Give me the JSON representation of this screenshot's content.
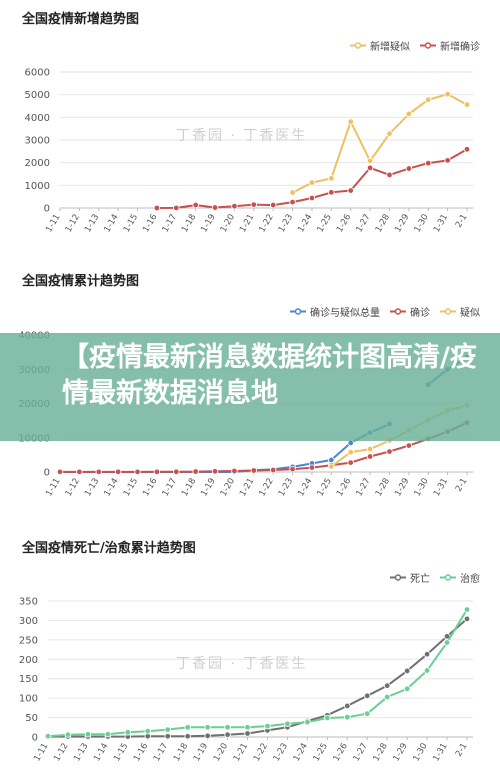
{
  "banner": {
    "text": "【疫情最新消息数据统计图高清/疫情最新数据消息地"
  },
  "watermark": {
    "text": "丁香园 · 丁香医生"
  },
  "colors": {
    "yellow": "#f0c060",
    "red": "#c8504f",
    "blue": "#4b84d8",
    "gray": "#707070",
    "green": "#69cf95"
  },
  "chart_data": [
    {
      "type": "line",
      "title": "全国疫情新增趋势图",
      "categories": [
        "1-11",
        "1-12",
        "1-13",
        "1-14",
        "1-15",
        "1-16",
        "1-17",
        "1-18",
        "1-19",
        "1-20",
        "1-21",
        "1-22",
        "1-23",
        "1-24",
        "1-25",
        "1-26",
        "1-27",
        "1-28",
        "1-29",
        "1-30",
        "1-31",
        "2-1"
      ],
      "ylim": [
        0,
        6000
      ],
      "yticks": [
        0,
        1000,
        2000,
        3000,
        4000,
        5000,
        6000
      ],
      "legend_position": "top-right",
      "series": [
        {
          "name": "新增疑似",
          "color": "#f0c060",
          "values": [
            null,
            null,
            null,
            null,
            null,
            null,
            null,
            null,
            null,
            null,
            null,
            null,
            680,
            1120,
            1310,
            3810,
            2080,
            3280,
            4150,
            4780,
            5020,
            4560
          ]
        },
        {
          "name": "新增确诊",
          "color": "#c8504f",
          "values": [
            null,
            null,
            null,
            null,
            null,
            0,
            4,
            130,
            20,
            80,
            150,
            130,
            260,
            440,
            690,
            770,
            1770,
            1460,
            1740,
            1980,
            2100,
            2590
          ]
        }
      ]
    },
    {
      "type": "line",
      "title": "全国疫情累计趋势图",
      "categories": [
        "1-11",
        "1-12",
        "1-13",
        "1-14",
        "1-15",
        "1-16",
        "1-17",
        "1-18",
        "1-19",
        "1-20",
        "1-21",
        "1-22",
        "1-23",
        "1-24",
        "1-25",
        "1-26",
        "1-27",
        "1-28",
        "1-29",
        "1-30",
        "1-31",
        "2-1"
      ],
      "ylim": [
        0,
        40000
      ],
      "yticks": [
        0,
        10000,
        20000,
        30000,
        40000
      ],
      "legend_position": "top-right",
      "series": [
        {
          "name": "确诊与疑似总量",
          "color": "#4b84d8",
          "values": [
            0,
            0,
            0,
            0,
            0,
            0,
            0,
            0,
            0,
            0,
            500,
            800,
            1500,
            2500,
            3500,
            8500,
            11500,
            14000,
            null,
            25500,
            30000,
            33500
          ]
        },
        {
          "name": "确诊",
          "color": "#c8504f",
          "values": [
            41,
            41,
            41,
            41,
            41,
            45,
            62,
            121,
            198,
            291,
            440,
            571,
            830,
            1287,
            1975,
            2744,
            4515,
            5974,
            7711,
            9692,
            11791,
            14380
          ]
        },
        {
          "name": "疑似",
          "color": "#f0c060",
          "values": [
            null,
            null,
            null,
            null,
            null,
            null,
            null,
            null,
            null,
            null,
            null,
            null,
            null,
            null,
            1600,
            5800,
            6700,
            9200,
            12200,
            15200,
            17900,
            19500
          ]
        }
      ]
    },
    {
      "type": "line",
      "title": "全国疫情死亡/治愈累计趋势图",
      "categories": [
        "1-11",
        "1-12",
        "1-13",
        "1-14",
        "1-15",
        "1-16",
        "1-17",
        "1-18",
        "1-19",
        "1-20",
        "1-21",
        "1-22",
        "1-23",
        "1-24",
        "1-25",
        "1-26",
        "1-27",
        "1-28",
        "1-29",
        "1-30",
        "1-31",
        "2-1"
      ],
      "ylim": [
        0,
        350
      ],
      "yticks": [
        0,
        50,
        100,
        150,
        200,
        250,
        300,
        350
      ],
      "legend_position": "top-right",
      "series": [
        {
          "name": "死亡",
          "color": "#707070",
          "values": [
            1,
            1,
            1,
            1,
            1,
            2,
            2,
            2,
            3,
            6,
            9,
            17,
            25,
            41,
            56,
            80,
            106,
            132,
            170,
            213,
            259,
            304
          ]
        },
        {
          "name": "治愈",
          "color": "#69cf95",
          "values": [
            2,
            6,
            7,
            7,
            12,
            15,
            19,
            25,
            25,
            25,
            25,
            28,
            34,
            38,
            49,
            51,
            60,
            103,
            124,
            171,
            243,
            328
          ]
        }
      ]
    }
  ]
}
